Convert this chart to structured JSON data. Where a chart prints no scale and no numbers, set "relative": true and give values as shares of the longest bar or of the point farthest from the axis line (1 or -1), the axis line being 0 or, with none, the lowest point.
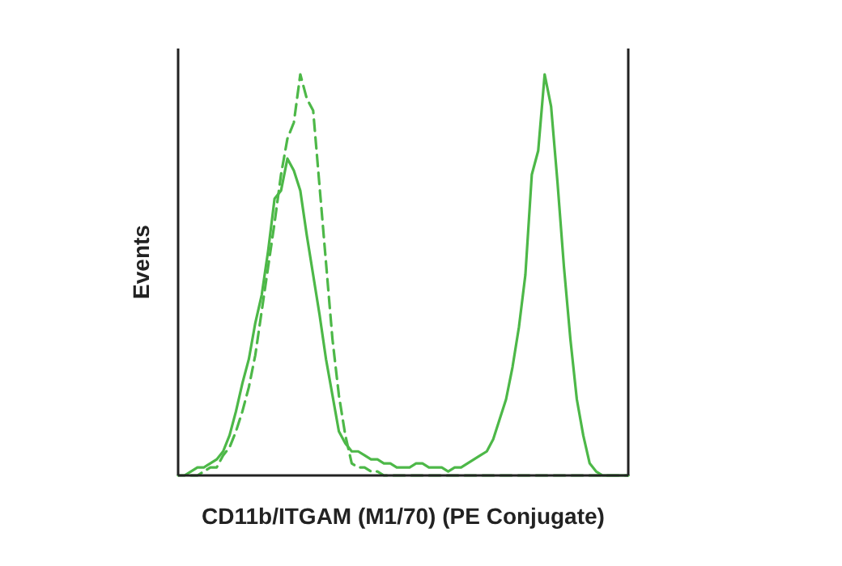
{
  "chart_data": {
    "type": "line",
    "relative": true,
    "xlabel": "CD11b/ITGAM (M1/70) (PE Conjugate)",
    "ylabel": "Events",
    "categories": [
      null,
      null,
      null,
      null,
      null,
      null,
      null,
      null,
      null,
      null,
      null,
      null,
      null,
      null,
      null,
      null,
      null,
      null,
      null,
      null,
      null,
      null,
      null,
      null,
      null,
      null,
      null,
      null,
      null,
      null,
      null,
      null,
      null,
      null,
      null,
      null,
      null,
      null,
      null,
      null,
      null,
      null,
      null,
      null,
      null,
      null,
      null,
      null,
      null,
      null,
      null,
      null,
      null,
      null,
      null,
      null,
      null,
      null,
      null,
      null,
      null,
      null,
      null,
      null,
      null,
      null,
      null,
      null,
      null,
      null,
      null
    ],
    "series": [
      {
        "color": "#4db848",
        "line_style": "solid",
        "values": [
          0,
          0,
          0.01,
          0.02,
          0.02,
          0.03,
          0.04,
          0.06,
          0.1,
          0.16,
          0.23,
          0.29,
          0.38,
          0.45,
          0.56,
          0.69,
          0.71,
          0.79,
          0.76,
          0.71,
          0.6,
          0.5,
          0.4,
          0.29,
          0.2,
          0.11,
          0.08,
          0.06,
          0.06,
          0.05,
          0.04,
          0.04,
          0.03,
          0.03,
          0.02,
          0.02,
          0.02,
          0.03,
          0.03,
          0.02,
          0.02,
          0.02,
          0.01,
          0.02,
          0.02,
          0.03,
          0.04,
          0.05,
          0.06,
          0.09,
          0.14,
          0.19,
          0.27,
          0.37,
          0.5,
          0.75,
          0.81,
          1,
          0.92,
          0.73,
          0.52,
          0.34,
          0.19,
          0.1,
          0.03,
          0.01,
          0,
          0,
          0,
          0,
          0
        ]
      },
      {
        "color": "#4db848",
        "line_style": "dashed",
        "values": [
          null,
          null,
          0,
          0,
          0.01,
          0.02,
          0.02,
          0.05,
          0.07,
          0.11,
          0.16,
          0.22,
          0.3,
          0.41,
          0.52,
          0.63,
          0.75,
          0.84,
          0.88,
          1,
          0.94,
          0.91,
          0.72,
          0.53,
          0.34,
          0.2,
          0.1,
          0.03,
          0.02,
          0.02,
          0.01,
          0.01,
          0,
          0,
          0,
          0,
          0,
          0,
          0,
          0,
          0,
          0,
          0,
          0,
          0,
          0,
          0,
          0,
          0,
          0,
          0,
          0,
          0,
          0,
          0,
          0,
          0,
          0,
          0,
          0,
          0,
          0,
          0,
          0,
          0,
          0,
          0,
          0,
          0,
          0,
          0
        ]
      }
    ]
  }
}
